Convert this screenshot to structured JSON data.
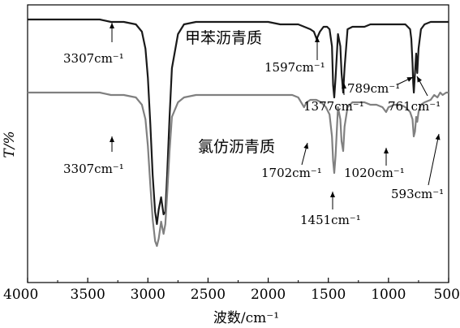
{
  "chart_data": {
    "type": "line",
    "xlabel": "波数/cm⁻¹",
    "ylabel": "T/%",
    "xlim": [
      4000,
      500
    ],
    "x_ticks": [
      4000,
      3500,
      3000,
      2500,
      2000,
      1500,
      1000,
      500
    ],
    "x_tick_labels": [
      "4000",
      "3500",
      "3000",
      "2500",
      "2000",
      "1500",
      "1000",
      "500"
    ],
    "grid": false,
    "series": [
      {
        "name": "甲苯沥青质",
        "color": "#1a1a1a",
        "x": [
          4000,
          3800,
          3600,
          3400,
          3307,
          3200,
          3100,
          3050,
          3020,
          3000,
          2980,
          2960,
          2940,
          2925,
          2910,
          2890,
          2870,
          2855,
          2840,
          2820,
          2800,
          2750,
          2700,
          2600,
          2400,
          2200,
          2000,
          1900,
          1800,
          1750,
          1700,
          1650,
          1620,
          1597,
          1570,
          1540,
          1510,
          1490,
          1470,
          1460,
          1451,
          1440,
          1420,
          1400,
          1390,
          1377,
          1365,
          1340,
          1300,
          1250,
          1200,
          1150,
          1100,
          1050,
          1020,
          1000,
          950,
          900,
          860,
          840,
          820,
          810,
          800,
          795,
          789,
          780,
          770,
          761,
          750,
          730,
          700,
          650,
          600,
          550,
          500
        ],
        "y": [
          96,
          96,
          96,
          96,
          95,
          95,
          94,
          91,
          84,
          72,
          53,
          32,
          17,
          12,
          18,
          23,
          16,
          17,
          32,
          56,
          76,
          90,
          94,
          95,
          95,
          95,
          95,
          94,
          94,
          94,
          93,
          92,
          91,
          88,
          91,
          93,
          93,
          92,
          85,
          69,
          64,
          72,
          90,
          85,
          74,
          66,
          76,
          92,
          93,
          93,
          93,
          94,
          94,
          94,
          94,
          94,
          94,
          94,
          94,
          93,
          92,
          88,
          78,
          70,
          66,
          74,
          82,
          74,
          84,
          92,
          94,
          95,
          95,
          95,
          95
        ]
      },
      {
        "name": "氯仿沥青质",
        "color": "#808080",
        "x": [
          4000,
          3800,
          3600,
          3400,
          3307,
          3200,
          3100,
          3050,
          3020,
          3000,
          2980,
          2960,
          2940,
          2925,
          2910,
          2890,
          2870,
          2855,
          2840,
          2820,
          2800,
          2750,
          2700,
          2600,
          2400,
          2200,
          2000,
          1900,
          1800,
          1750,
          1702,
          1680,
          1650,
          1600,
          1560,
          1520,
          1490,
          1470,
          1460,
          1451,
          1440,
          1420,
          1400,
          1390,
          1377,
          1365,
          1340,
          1300,
          1250,
          1200,
          1150,
          1100,
          1050,
          1020,
          1000,
          950,
          900,
          860,
          840,
          820,
          800,
          790,
          780,
          770,
          761,
          750,
          730,
          700,
          650,
          620,
          593,
          570,
          550,
          520,
          500
        ],
        "y": [
          66,
          66,
          66,
          66,
          65,
          65,
          64,
          61,
          55,
          44,
          28,
          14,
          5,
          3,
          6,
          13,
          8,
          12,
          24,
          42,
          56,
          62,
          64,
          65,
          65,
          65,
          65,
          65,
          65,
          64,
          60,
          62,
          63,
          63,
          62,
          60,
          57,
          48,
          38,
          33,
          40,
          60,
          55,
          46,
          42,
          52,
          60,
          62,
          62,
          62,
          61,
          61,
          60,
          58,
          60,
          61,
          61,
          60,
          59,
          58,
          55,
          48,
          50,
          56,
          54,
          58,
          61,
          62,
          63,
          65,
          64,
          66,
          65,
          66,
          66
        ]
      }
    ],
    "annotations": [
      {
        "text": "3307cm⁻¹",
        "series": "甲苯沥青质",
        "x": 3307
      },
      {
        "text": "1597cm⁻¹",
        "series": "甲苯沥青质",
        "x": 1597
      },
      {
        "text": "1377cm⁻¹",
        "series": "甲苯沥青质",
        "x": 1377
      },
      {
        "text": "789cm⁻¹",
        "series": "甲苯沥青质",
        "x": 789
      },
      {
        "text": "761cm⁻¹",
        "series": "甲苯沥青质",
        "x": 761
      },
      {
        "text": "3307cm⁻¹",
        "series": "氯仿沥青质",
        "x": 3307
      },
      {
        "text": "1702cm⁻¹",
        "series": "氯仿沥青质",
        "x": 1702
      },
      {
        "text": "1451cm⁻¹",
        "series": "氯仿沥青质",
        "x": 1451
      },
      {
        "text": "1020cm⁻¹",
        "series": "氯仿沥青质",
        "x": 1020
      },
      {
        "text": "593cm⁻¹",
        "series": "氯仿沥青质",
        "x": 593
      }
    ]
  }
}
